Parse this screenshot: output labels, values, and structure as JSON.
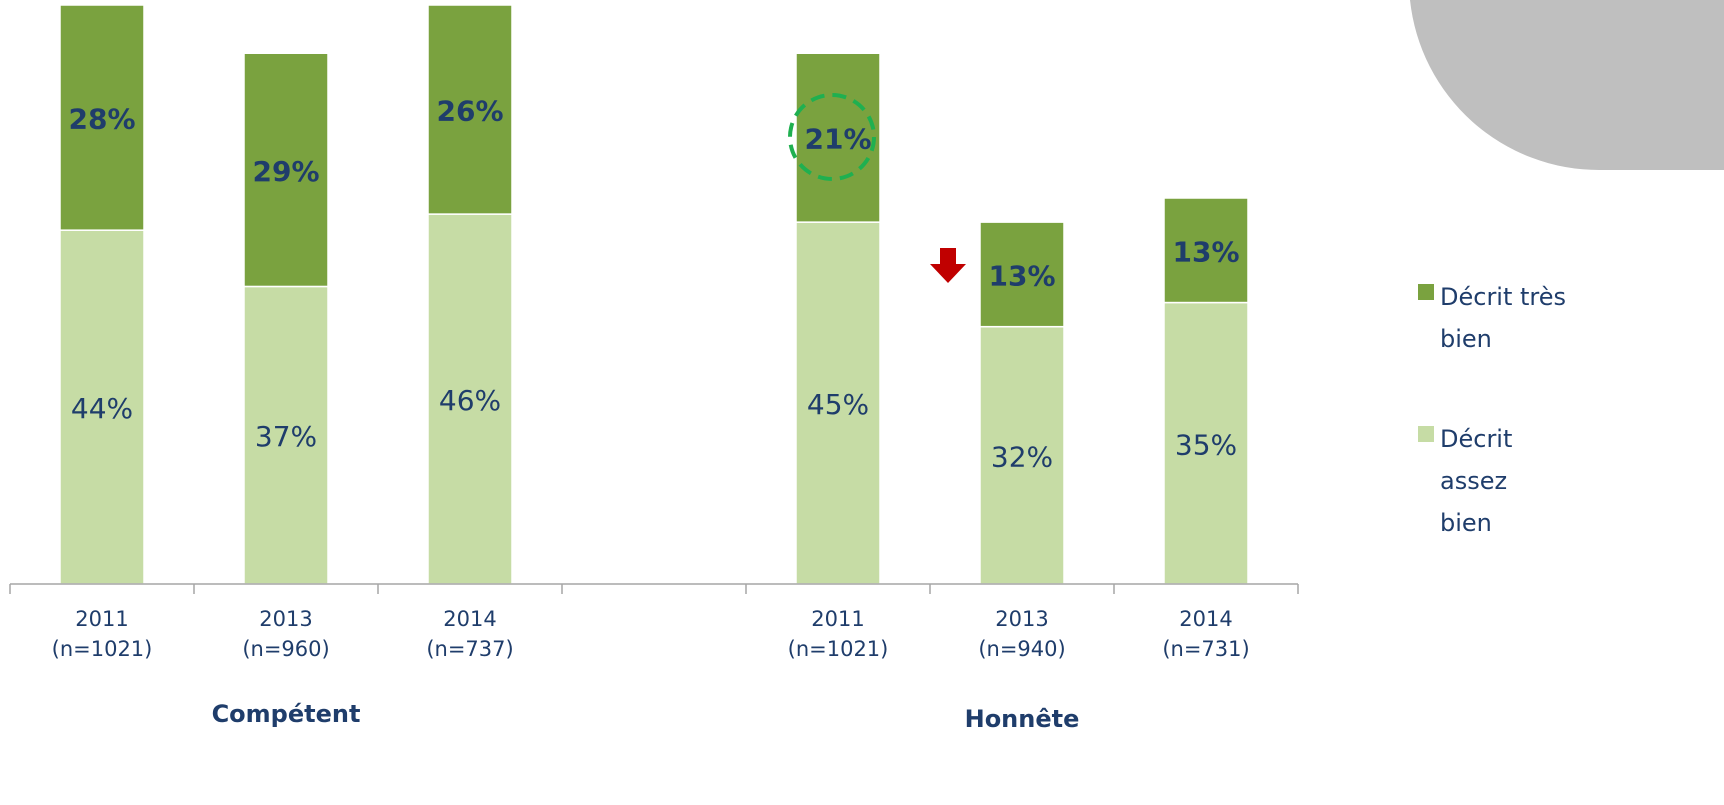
{
  "chart_data": {
    "type": "stacked-bar",
    "categories": [
      "2011\n(n=1021)",
      "2013\n(n=960)",
      "2014\n(n=737)",
      null,
      "2011\n(n=1021)",
      "2013\n(n=940)",
      "2014\n(n=731)"
    ],
    "groups": [
      "Compétent",
      "Honnête"
    ],
    "series": [
      {
        "name": "Décrit assez bien",
        "color": "#c6dca5",
        "values": [
          44,
          37,
          46,
          null,
          45,
          32,
          35
        ],
        "value_labels": [
          "44%",
          "37%",
          "46%",
          null,
          "45%",
          "32%",
          "35%"
        ]
      },
      {
        "name": "Décrit très bien",
        "color": "#7aa23f",
        "values": [
          28,
          29,
          26,
          null,
          21,
          13,
          13
        ],
        "value_labels": [
          "28%",
          "29%",
          "26%",
          null,
          "21%",
          "13%",
          "13%"
        ]
      }
    ],
    "ylim": [
      0,
      72
    ]
  }
}
